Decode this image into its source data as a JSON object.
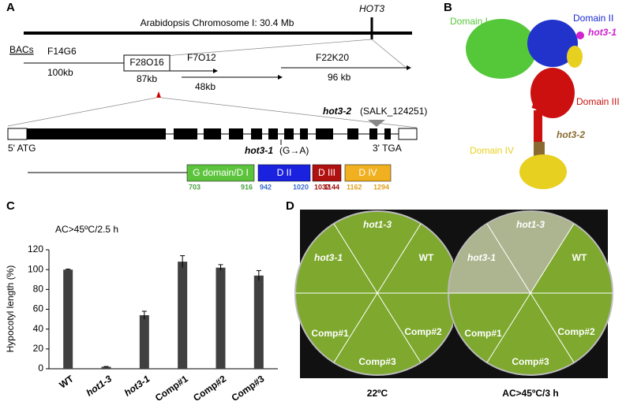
{
  "panel_a": {
    "letter": "A",
    "chromosome": "Arabidopsis Chromosome I: 30.4 Mb",
    "gene": "HOT3",
    "bacs_label": "BACs",
    "bacs": [
      {
        "name": "F14G6",
        "size": "100kb"
      },
      {
        "name": "F28O16",
        "size": "87kb"
      },
      {
        "name": "F7O12",
        "size": "48kb"
      },
      {
        "name": "F22K20",
        "size": "96 kb"
      }
    ],
    "allele2": "hot3-2",
    "allele2_note": "(SALK_124251)",
    "start": "5' ATG",
    "allele1": "hot3-1",
    "allele1_note": "(G→A)",
    "stop": "3' TGA",
    "domains": [
      {
        "name": "G domain/D I",
        "from": "703",
        "to": "916"
      },
      {
        "name": "D II",
        "from": "942",
        "to": "1020"
      },
      {
        "name": "D III",
        "from": "1037",
        "to": "1144"
      },
      {
        "name": "D IV",
        "from": "1162",
        "to": "1294"
      }
    ]
  },
  "panel_b": {
    "letter": "B",
    "labels": [
      "Domain I",
      "Domain II",
      "hot3-1",
      "Domain III",
      "hot3-2",
      "Domain IV"
    ]
  },
  "chart_data": {
    "type": "bar",
    "letter": "C",
    "annotation": "AC>45ºC/2.5 h",
    "y_label": "Hypocotyl length (%)",
    "categories": [
      "WT",
      "hot1-3",
      "hot3-1",
      "Comp#1",
      "Comp#2",
      "Comp#3"
    ],
    "values": [
      100,
      2,
      54,
      108,
      102,
      94
    ],
    "errors": [
      0.5,
      0.3,
      4,
      6,
      3,
      5
    ],
    "color": "#404040",
    "ylim": [
      0,
      120
    ],
    "yticks": [
      0,
      20,
      40,
      60,
      80,
      100,
      120
    ],
    "grid": false
  },
  "panel_d": {
    "letter": "D",
    "plate_labels": [
      "hot1-3",
      "hot3-1",
      "WT",
      "Comp#1",
      "Comp#2",
      "Comp#3"
    ],
    "conditions": [
      "22ºC",
      "AC>45ºC/3 h"
    ]
  }
}
